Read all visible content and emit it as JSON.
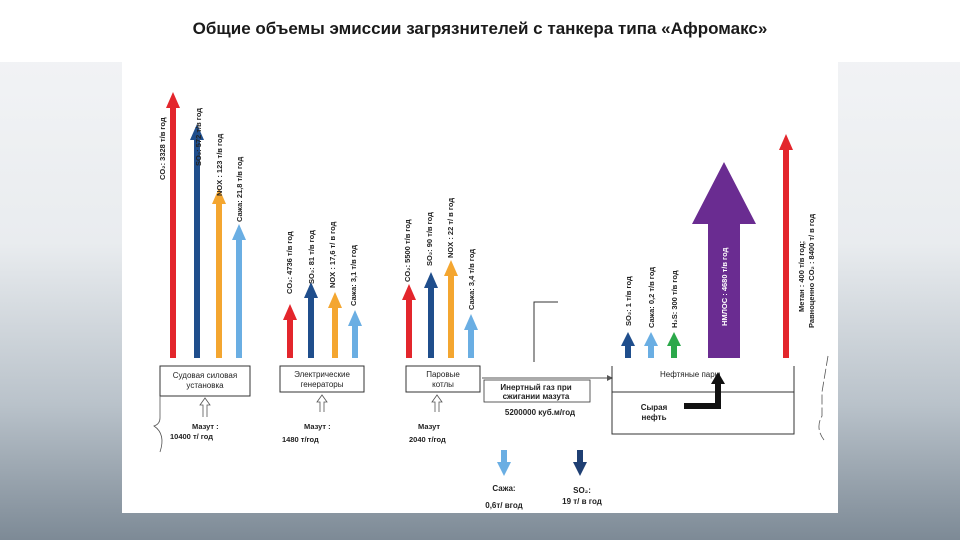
{
  "title": "Общие объемы эмиссии загрязнителей с танкера типа «Афромакс»",
  "colors": {
    "red": "#e3262c",
    "blue": "#1f4e8c",
    "orange": "#f4a630",
    "lightblue": "#6aaee3",
    "green": "#2ba84a",
    "purple": "#6a2c91",
    "darkblue": "#1f3f73"
  },
  "sources": [
    {
      "label1": "Судовая силовая",
      "label2": "установка",
      "fuel_label": "Мазут :",
      "fuel_value": "10400 т/ год",
      "emissions": [
        "CO₂: 3328 т/в год",
        "SO₂: 572 т/в год",
        "NOX : 123 т/в год",
        "Сажа: 21,8 т/в год"
      ]
    },
    {
      "label1": "Электрические",
      "label2": "генераторы",
      "fuel_label": "Мазут :",
      "fuel_value": "1480 т/год",
      "emissions": [
        "CO₂: 4736 т/в год",
        "SO₂: 81 т/в год",
        "NOX : 17,6 т/ в год",
        "Сажа: 3,1 т/в год"
      ]
    },
    {
      "label1": "Паровые",
      "label2": "котлы",
      "fuel_label": "Мазут",
      "fuel_value": "2040 т/год",
      "emissions": [
        "CO₂: 5500 т/в год",
        "SO₂: 90 т/в год",
        "NOX : 22 т/ в год",
        "Сажа: 3,4 т/в год"
      ]
    }
  ],
  "inert_gas": {
    "line1": "Инертный газ при",
    "line2": "сжигании мазута",
    "value": "5200000 куб.м/год"
  },
  "tank": {
    "vapor": "Нефтяные пары",
    "crude1": "Сырая",
    "crude2": "нефть",
    "emissions": [
      "SO₂: 1 т/в год",
      "Сажа: 0,2 т/в год",
      "H₂S: 300 т/в год",
      "НМЛОС : 4680 т/в год",
      "Метан : 400 т/в год;",
      "Равноценно CO₂ : 8400 т/ в год"
    ]
  },
  "bottom": {
    "soot_label": "Сажа:",
    "soot_value": "0,6т/ вгод",
    "so2_label": "SO₂:",
    "so2_value": "19 т/ в год"
  }
}
